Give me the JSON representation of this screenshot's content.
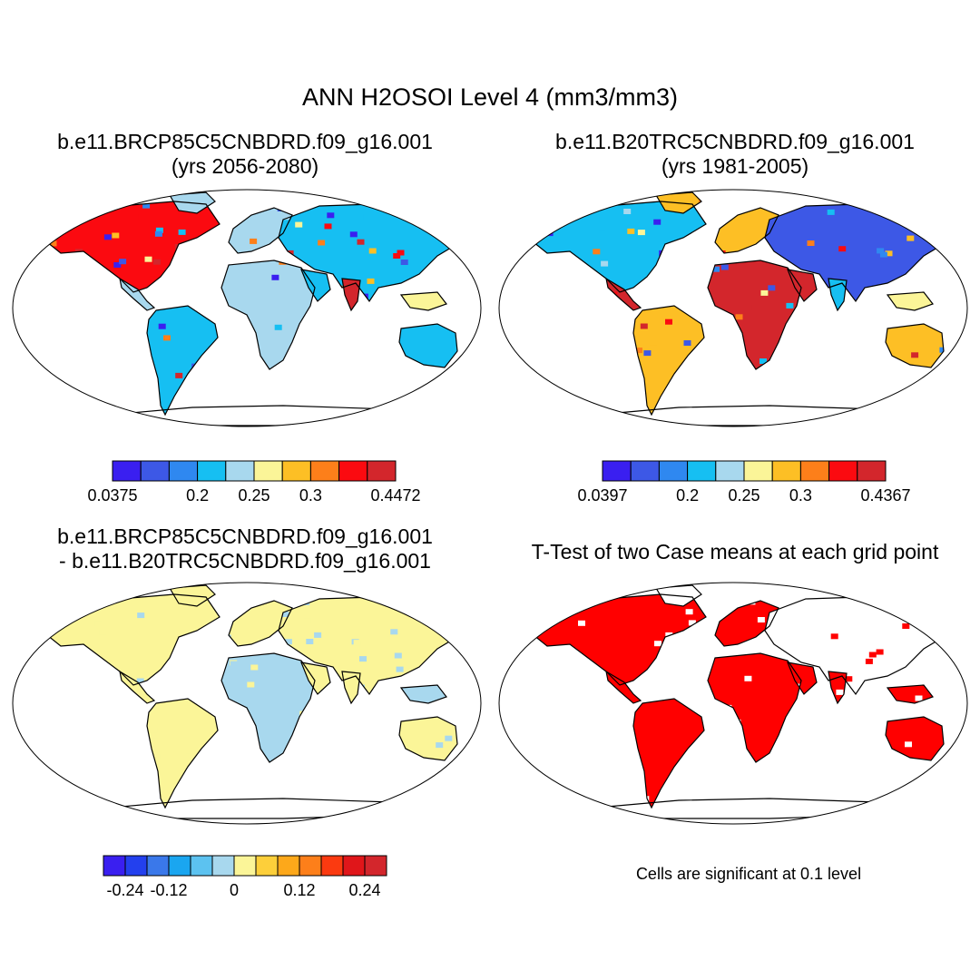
{
  "title": "ANN H2OSOI Level 4 (mm3/mm3)",
  "panels": {
    "top_left": {
      "title_line1": "b.e11.BRCP85C5CNBDRD.f09_g16.001",
      "title_line2": "(yrs 2056-2080)"
    },
    "top_right": {
      "title_line1": "b.e11.B20TRC5CNBDRD.f09_g16.001",
      "title_line2": "(yrs 1981-2005)"
    },
    "bottom_left": {
      "title_line1": "b.e11.BRCP85C5CNBDRD.f09_g16.001",
      "title_line2": "- b.e11.B20TRC5CNBDRD.f09_g16.001"
    },
    "bottom_right": {
      "title_line1": "T-Test of two Case means at each grid point",
      "note": "Cells are significant at 0.1 level"
    }
  },
  "colorbars": {
    "top_left": {
      "colors": [
        "#3a1ff0",
        "#3d58e6",
        "#2f88f0",
        "#16bff2",
        "#a8d8ee",
        "#fbf598",
        "#fdbf25",
        "#fd7f1a",
        "#fb0a10",
        "#d3262c"
      ],
      "labels": [
        "0.0375",
        "0.2",
        "0.25",
        "0.3",
        "0.4472"
      ],
      "label_positions": [
        0,
        3,
        5,
        7,
        10
      ]
    },
    "top_right": {
      "colors": [
        "#3a1ff0",
        "#3d58e6",
        "#2f88f0",
        "#16bff2",
        "#a8d8ee",
        "#fbf598",
        "#fdbf25",
        "#fd7f1a",
        "#fb0a10",
        "#d3262c"
      ],
      "labels": [
        "0.0397",
        "0.2",
        "0.25",
        "0.3",
        "0.4367"
      ],
      "label_positions": [
        0,
        3,
        5,
        7,
        10
      ]
    },
    "bottom_left": {
      "colors": [
        "#3a1ff0",
        "#2340ee",
        "#3a78ea",
        "#1aa6f0",
        "#5cc2f0",
        "#a8d8ee",
        "#fbf598",
        "#fdcf3a",
        "#fda81a",
        "#fd7f1a",
        "#fb3a10",
        "#e0161a",
        "#d3262c"
      ],
      "labels": [
        "-0.24",
        "-0.12",
        "0",
        "0.12",
        "0.24"
      ],
      "label_positions": [
        1,
        3,
        6,
        9,
        12
      ]
    }
  },
  "map_colors": {
    "coast": "#000000",
    "difference_base": "#a8d8ee",
    "difference_alt": "#fbf598",
    "significant": "#ff0000",
    "land_dry": "#3a3af0",
    "land_mid": "#fbf598",
    "land_wet": "#e82020"
  }
}
